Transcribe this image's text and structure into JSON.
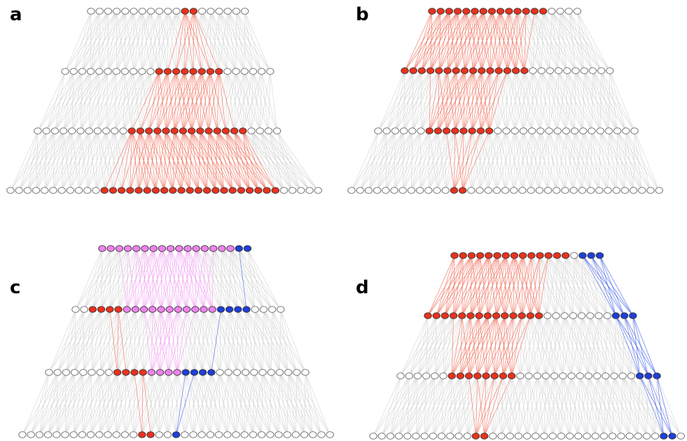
{
  "panels": {
    "a": {
      "label": "a"
    },
    "b": {
      "label": "b"
    },
    "c": {
      "label": "c"
    },
    "d": {
      "label": "d"
    }
  },
  "colors": {
    "idle_node_fill": "#ffffff",
    "idle_node_stroke": "#666666",
    "idle_edge": "#cfcfcf",
    "red_node": "#e8321e",
    "red_edge": "#ef6a55",
    "blue_node": "#1f3fd6",
    "blue_edge": "#3f5fe8",
    "pink_node": "#ee82ee",
    "pink_edge": "#f09af0"
  }
}
